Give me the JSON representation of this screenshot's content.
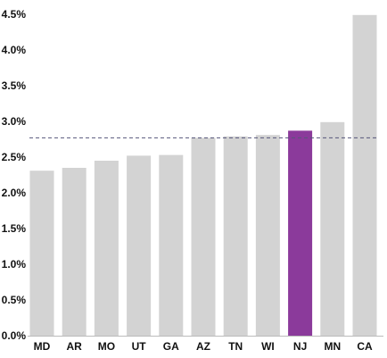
{
  "chart_data": {
    "type": "bar",
    "categories": [
      "MD",
      "AR",
      "MO",
      "UT",
      "GA",
      "AZ",
      "TN",
      "WI",
      "NJ",
      "MN",
      "CA"
    ],
    "values": [
      2.31,
      2.35,
      2.45,
      2.52,
      2.53,
      2.77,
      2.79,
      2.81,
      2.87,
      2.99,
      4.49
    ],
    "highlight": "NJ",
    "bar_color": "#d3d3d3",
    "highlight_color": "#8b3a9b",
    "reference_line": 2.77,
    "reference_line_color": "#55557a",
    "ylim": [
      0,
      4.5
    ],
    "yticks": [
      "0.0%",
      "0.5%",
      "1.0%",
      "1.5%",
      "2.0%",
      "2.5%",
      "3.0%",
      "3.5%",
      "4.0%",
      "4.5%"
    ],
    "grid": false,
    "title": "",
    "xlabel": "",
    "ylabel": ""
  }
}
